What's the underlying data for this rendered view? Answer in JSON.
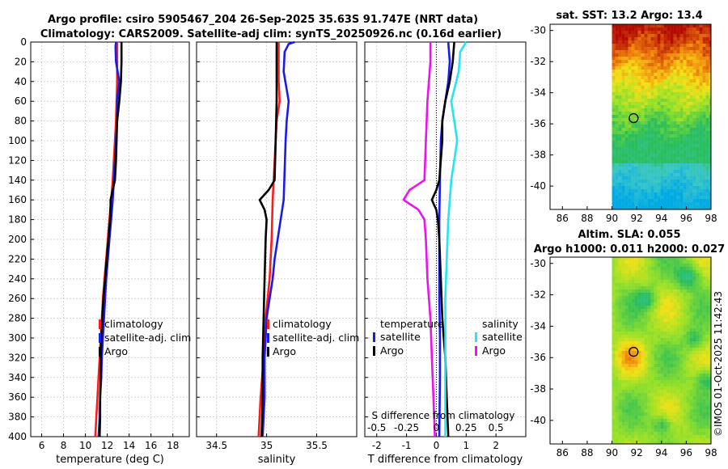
{
  "header": {
    "line1": "Argo profile: csiro 5905467_204 26-Sep-2025 35.63S 91.747E (NRT data)",
    "line2": "Climatology: CARS2009. Satellite-adj clim: synTS_20250926.nc (0.16d earlier)"
  },
  "watermark": "©IMOS 01-Oct-2025 11:42:43",
  "colors": {
    "climatology": "#ff1a1a",
    "satellite": "#1a1aee",
    "argo": "#000000",
    "salinity_sat": "#22e6f0",
    "salinity_argo": "#ee11ee",
    "grid": "#cccccc"
  },
  "depth_ticks": [
    "0",
    "20",
    "40",
    "60",
    "80",
    "100",
    "120",
    "140",
    "160",
    "180",
    "200",
    "220",
    "240",
    "260",
    "280",
    "300",
    "320",
    "340",
    "360",
    "380",
    "400"
  ],
  "chart_data": [
    {
      "type": "line",
      "id": "temperature",
      "xlabel": "temperature (deg C)",
      "xlim": [
        5,
        19.5
      ],
      "ylim": [
        0,
        400
      ],
      "y_inverted": true,
      "xticks": [
        6,
        8,
        10,
        12,
        14,
        16,
        18
      ],
      "xtick_labels": [
        "6",
        "8",
        "10",
        "12",
        "14",
        "16",
        "18"
      ],
      "legend": [
        "climatology",
        "satellite-adj. clim",
        "Argo"
      ],
      "series": [
        {
          "name": "climatology",
          "depth": [
            0,
            20,
            40,
            60,
            80,
            100,
            120,
            140,
            160,
            180,
            200,
            220,
            240,
            260,
            280,
            300,
            320,
            340,
            360,
            380,
            400
          ],
          "values": [
            12.9,
            12.9,
            12.9,
            12.85,
            12.8,
            12.7,
            12.6,
            12.5,
            12.35,
            12.2,
            12.05,
            11.9,
            11.75,
            11.6,
            11.5,
            11.4,
            11.3,
            11.2,
            11.1,
            11.0,
            10.9
          ]
        },
        {
          "name": "satellite-adj. clim",
          "depth": [
            0,
            5,
            20,
            40,
            60,
            80,
            100,
            120,
            140,
            160,
            180,
            200,
            220,
            240,
            260,
            280,
            300,
            320,
            340,
            360,
            380,
            400
          ],
          "values": [
            12.8,
            12.75,
            12.8,
            13.1,
            12.9,
            12.9,
            12.8,
            12.7,
            12.6,
            12.5,
            12.35,
            12.2,
            12.05,
            11.9,
            11.8,
            11.7,
            11.6,
            11.5,
            11.45,
            11.35,
            11.3,
            11.2
          ]
        },
        {
          "name": "Argo",
          "depth": [
            0,
            5,
            20,
            40,
            60,
            80,
            100,
            120,
            140,
            150,
            160,
            165,
            180,
            200,
            220,
            240,
            260,
            280,
            300,
            320,
            340,
            360,
            380,
            400
          ],
          "values": [
            13.3,
            13.3,
            13.3,
            13.25,
            13.1,
            12.9,
            12.85,
            12.8,
            12.7,
            12.5,
            12.3,
            12.3,
            12.25,
            12.1,
            11.95,
            11.8,
            11.65,
            11.55,
            11.45,
            11.4,
            11.4,
            11.35,
            11.35,
            11.3
          ]
        }
      ]
    },
    {
      "type": "line",
      "id": "salinity",
      "xlabel": "salinity",
      "xlim": [
        34.3,
        35.9
      ],
      "ylim": [
        0,
        400
      ],
      "y_inverted": true,
      "xticks": [
        34.5,
        35,
        35.5
      ],
      "xtick_labels": [
        "34.5",
        "35",
        "35.5"
      ],
      "legend": [
        "climatology",
        "satellite-adj. clim",
        "Argo"
      ],
      "series": [
        {
          "name": "climatology",
          "depth": [
            0,
            40,
            60,
            80,
            100,
            140,
            160,
            200,
            240,
            280,
            320,
            360,
            400
          ],
          "values": [
            35.12,
            35.12,
            35.13,
            35.1,
            35.09,
            35.07,
            35.06,
            35.05,
            35.03,
            34.99,
            34.97,
            34.94,
            34.92
          ]
        },
        {
          "name": "satellite-adj. clim",
          "depth": [
            0,
            2,
            10,
            30,
            60,
            80,
            100,
            160,
            220,
            240,
            260,
            280,
            320,
            360,
            400
          ],
          "values": [
            35.28,
            35.22,
            35.18,
            35.17,
            35.22,
            35.2,
            35.19,
            35.17,
            35.08,
            35.06,
            35.03,
            35.0,
            34.98,
            34.98,
            34.96
          ]
        },
        {
          "name": "Argo",
          "depth": [
            0,
            20,
            60,
            100,
            140,
            150,
            160,
            170,
            180,
            200,
            240,
            280,
            320,
            360,
            400
          ],
          "values": [
            35.1,
            35.1,
            35.1,
            35.09,
            35.08,
            35.02,
            34.93,
            34.98,
            35.0,
            34.99,
            34.98,
            34.97,
            34.96,
            34.96,
            34.95
          ]
        }
      ]
    },
    {
      "type": "line",
      "id": "difference",
      "xlabel": "T difference from climatology",
      "xlabel2": "S difference from climatology",
      "xlim": [
        -2.4,
        3.0
      ],
      "ylim": [
        0,
        400
      ],
      "y_inverted": true,
      "xticks": [
        -2,
        -1,
        0,
        1,
        2
      ],
      "xtick_labels": [
        "-2",
        "-1",
        "0",
        "1",
        "2"
      ],
      "top_xtick_labels": [
        "-0.5",
        "-0.25",
        "0",
        "0.25",
        "0.5"
      ],
      "legend_title_temperature": "temperature",
      "legend_title_salinity": "salinity",
      "legend_temperature": [
        "satellite",
        "Argo"
      ],
      "legend_salinity": [
        "satellite",
        "Argo"
      ],
      "series": [
        {
          "name": "temperature satellite",
          "depth": [
            0,
            20,
            40,
            60,
            80,
            100,
            140,
            180,
            220,
            260,
            300,
            340,
            400
          ],
          "values": [
            0.4,
            0.45,
            0.4,
            0.3,
            0.2,
            0.15,
            0.12,
            0.1,
            0.1,
            0.1,
            0.12,
            0.12,
            0.1
          ]
        },
        {
          "name": "temperature Argo",
          "depth": [
            0,
            20,
            40,
            60,
            80,
            100,
            140,
            150,
            160,
            170,
            180,
            200,
            240,
            280,
            320,
            360,
            400
          ],
          "values": [
            0.6,
            0.55,
            0.45,
            0.3,
            0.2,
            0.2,
            0.1,
            0.0,
            -0.15,
            0.0,
            0.05,
            0.1,
            0.15,
            0.2,
            0.3,
            0.35,
            0.4
          ]
        },
        {
          "name": "salinity satellite",
          "depth": [
            0,
            10,
            30,
            60,
            80,
            100,
            140,
            180,
            220,
            260,
            300,
            340,
            400
          ],
          "values": [
            1.0,
            0.8,
            0.75,
            0.5,
            0.6,
            0.7,
            0.5,
            0.4,
            0.35,
            0.3,
            0.3,
            0.3,
            0.3
          ]
        },
        {
          "name": "salinity Argo",
          "depth": [
            0,
            20,
            60,
            100,
            140,
            150,
            160,
            170,
            180,
            200,
            240,
            280,
            320,
            360,
            400
          ],
          "values": [
            -0.2,
            -0.2,
            -0.3,
            -0.35,
            -0.4,
            -0.9,
            -1.1,
            -0.6,
            -0.4,
            -0.35,
            -0.3,
            -0.2,
            -0.15,
            -0.1,
            -0.05
          ]
        }
      ]
    },
    {
      "type": "heatmap",
      "id": "sst_map",
      "title": "sat. SST: 13.2 Argo: 13.4",
      "xlim": [
        85,
        98
      ],
      "ylim": [
        -41.5,
        -29.6
      ],
      "xtick_labels": [
        "86",
        "88",
        "90",
        "92",
        "94",
        "96",
        "98"
      ],
      "ytick_labels": [
        "-30",
        "-32",
        "-34",
        "-36",
        "-38",
        "-40"
      ],
      "profile_lon": 91.75,
      "profile_lat": -35.63
    },
    {
      "type": "heatmap",
      "id": "sla_map",
      "title": "Altim. SLA: 0.055",
      "title2": "Argo h1000: 0.011 h2000: 0.027",
      "xlim": [
        85,
        98
      ],
      "ylim": [
        -41.5,
        -29.6
      ],
      "xtick_labels": [
        "86",
        "88",
        "90",
        "92",
        "94",
        "96",
        "98"
      ],
      "ytick_labels": [
        "-30",
        "-32",
        "-34",
        "-36",
        "-38",
        "-40"
      ],
      "profile_lon": 91.75,
      "profile_lat": -35.63
    }
  ]
}
